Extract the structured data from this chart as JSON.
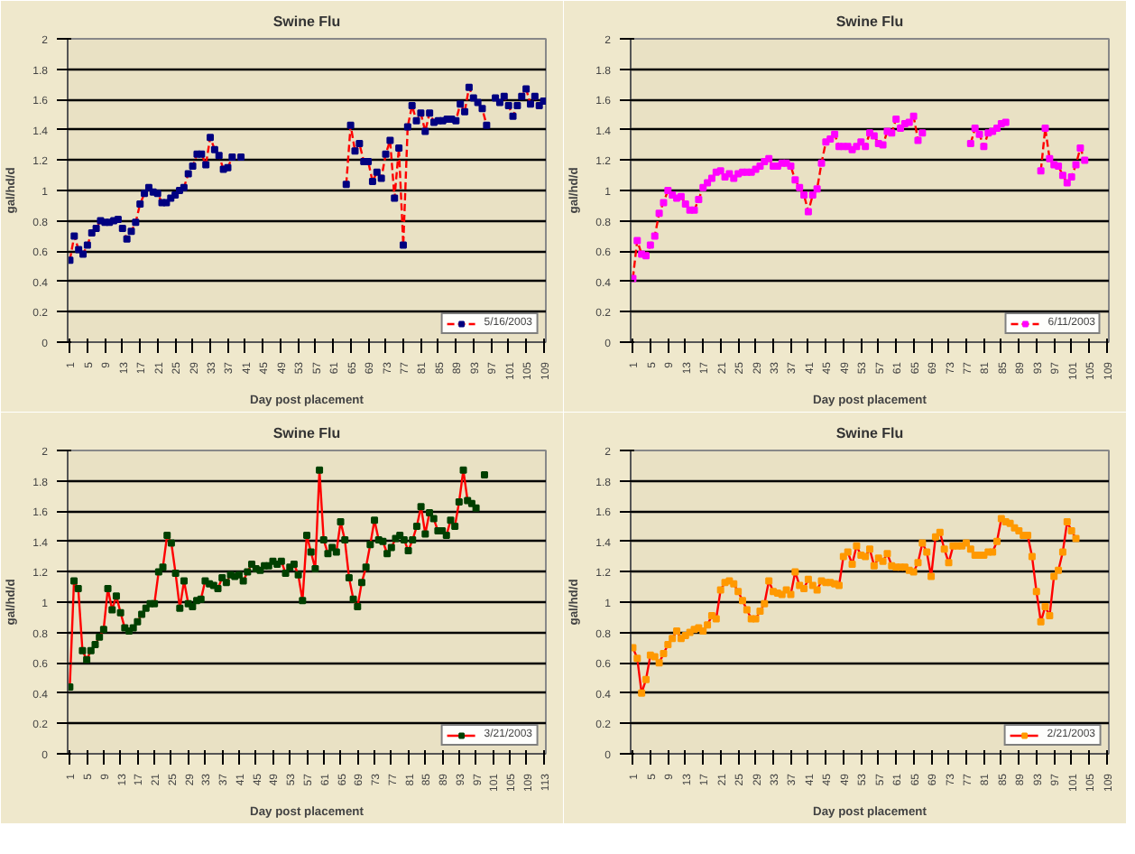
{
  "chart_data": [
    {
      "type": "line",
      "title": "Swine Flu",
      "xlabel": "Day post placement",
      "ylabel": "gal/hd/d",
      "legend": "bottom right",
      "grid": "y",
      "marker": "square",
      "line_style": "dashed",
      "xlim": [
        0.5,
        109.5
      ],
      "xticks": [
        1,
        5,
        9,
        13,
        17,
        21,
        25,
        29,
        33,
        37,
        41,
        45,
        49,
        53,
        57,
        61,
        65,
        69,
        73,
        77,
        81,
        85,
        89,
        93,
        97,
        101,
        105,
        109
      ],
      "ylim": [
        0,
        2
      ],
      "yticks": [
        0,
        0.2,
        0.4,
        0.6,
        0.8,
        1,
        1.2,
        1.4,
        1.6,
        1.8,
        2
      ],
      "x": [
        1,
        2,
        3,
        4,
        5,
        6,
        7,
        8,
        9,
        10,
        11,
        12,
        13,
        14,
        15,
        16,
        17,
        18,
        19,
        20,
        21,
        22,
        23,
        24,
        25,
        26,
        27,
        28,
        29,
        30,
        31,
        32,
        33,
        34,
        35,
        36,
        37,
        38,
        39,
        40,
        41,
        42,
        43,
        44,
        45,
        46,
        47,
        48,
        49,
        50,
        51,
        52,
        53,
        54,
        55,
        56,
        57,
        58,
        59,
        60,
        61,
        62,
        63,
        64,
        65,
        66,
        67,
        68,
        69,
        70,
        71,
        72,
        73,
        74,
        75,
        76,
        77,
        78,
        79,
        80,
        81,
        82,
        83,
        84,
        85,
        86,
        87,
        88,
        89,
        90,
        91,
        92,
        93,
        94,
        95,
        96,
        97,
        98,
        99,
        100,
        101,
        102,
        103,
        104,
        105,
        106,
        107,
        108,
        109
      ],
      "series": [
        {
          "name": "5/16/2003",
          "color": "#000080",
          "values": [
            0.54,
            0.7,
            0.61,
            0.58,
            0.64,
            0.72,
            0.75,
            0.8,
            0.79,
            0.79,
            0.8,
            0.81,
            0.75,
            0.68,
            0.73,
            0.79,
            0.91,
            0.98,
            1.02,
            0.99,
            0.98,
            0.92,
            0.92,
            0.95,
            0.97,
            1.0,
            1.02,
            1.11,
            1.16,
            1.24,
            1.24,
            1.17,
            1.35,
            1.27,
            1.23,
            1.14,
            1.15,
            1.22,
            null,
            1.22,
            null,
            null,
            null,
            null,
            null,
            null,
            null,
            null,
            null,
            null,
            null,
            null,
            null,
            null,
            null,
            null,
            null,
            null,
            null,
            null,
            null,
            null,
            null,
            1.04,
            1.43,
            1.26,
            1.31,
            1.19,
            1.19,
            1.06,
            1.12,
            1.08,
            1.24,
            1.33,
            0.95,
            1.28,
            0.64,
            1.42,
            1.56,
            1.46,
            1.51,
            1.39,
            1.51,
            1.45,
            1.46,
            1.46,
            1.47,
            1.47,
            1.46,
            1.57,
            1.52,
            1.68,
            1.61,
            1.58,
            1.54,
            1.43,
            null,
            1.61,
            1.58,
            1.62,
            1.56,
            1.49,
            1.56,
            1.62,
            1.67,
            1.57,
            1.62,
            1.56,
            1.59
          ]
        }
      ]
    },
    {
      "type": "line",
      "title": "Swine Flu",
      "xlabel": "Day post placement",
      "ylabel": "gal/hd/d",
      "legend": "bottom right",
      "grid": "y",
      "marker": "square",
      "line_style": "dashed",
      "xlim": [
        0.5,
        109.5
      ],
      "xticks": [
        1,
        5,
        9,
        13,
        17,
        21,
        25,
        29,
        33,
        37,
        41,
        45,
        49,
        53,
        57,
        61,
        65,
        69,
        73,
        77,
        81,
        85,
        89,
        93,
        97,
        101,
        105,
        109
      ],
      "ylim": [
        0,
        2
      ],
      "yticks": [
        0,
        0.2,
        0.4,
        0.6,
        0.8,
        1,
        1.2,
        1.4,
        1.6,
        1.8,
        2
      ],
      "x": [
        1,
        2,
        3,
        4,
        5,
        6,
        7,
        8,
        9,
        10,
        11,
        12,
        13,
        14,
        15,
        16,
        17,
        18,
        19,
        20,
        21,
        22,
        23,
        24,
        25,
        26,
        27,
        28,
        29,
        30,
        31,
        32,
        33,
        34,
        35,
        36,
        37,
        38,
        39,
        40,
        41,
        42,
        43,
        44,
        45,
        46,
        47,
        48,
        49,
        50,
        51,
        52,
        53,
        54,
        55,
        56,
        57,
        58,
        59,
        60,
        61,
        62,
        63,
        64,
        65,
        66,
        67,
        68,
        69,
        70,
        71,
        72,
        73,
        74,
        75,
        76,
        77,
        78,
        79,
        80,
        81,
        82,
        83,
        84,
        85,
        86,
        87,
        88,
        89,
        90,
        91,
        92,
        93,
        94,
        95,
        96,
        97,
        98,
        99,
        100,
        101,
        102,
        103,
        104
      ],
      "series": [
        {
          "name": "6/11/2003",
          "color": "#ff00ff",
          "values": [
            0.42,
            0.67,
            0.58,
            0.57,
            0.64,
            0.7,
            0.85,
            0.92,
            1.0,
            0.97,
            0.95,
            0.96,
            0.91,
            0.87,
            0.87,
            0.94,
            1.02,
            1.05,
            1.08,
            1.12,
            1.13,
            1.09,
            1.11,
            1.08,
            1.11,
            1.12,
            1.12,
            1.12,
            1.14,
            1.16,
            1.19,
            1.21,
            1.16,
            1.16,
            1.18,
            1.18,
            1.16,
            1.07,
            1.02,
            0.97,
            0.86,
            0.97,
            1.01,
            1.18,
            1.32,
            1.34,
            1.37,
            1.29,
            1.29,
            1.29,
            1.27,
            1.29,
            1.32,
            1.29,
            1.38,
            1.36,
            1.31,
            1.3,
            1.39,
            1.38,
            1.47,
            1.41,
            1.44,
            1.45,
            1.49,
            1.33,
            1.38,
            null,
            null,
            null,
            null,
            null,
            null,
            null,
            null,
            null,
            null,
            1.31,
            1.41,
            1.37,
            1.29,
            1.38,
            1.39,
            1.41,
            1.44,
            1.45,
            null,
            null,
            null,
            null,
            null,
            null,
            null,
            1.13,
            1.41,
            1.21,
            1.17,
            1.16,
            1.1,
            1.05,
            1.09,
            1.17,
            1.28,
            1.2
          ]
        }
      ]
    },
    {
      "type": "line",
      "title": "Swine Flu",
      "xlabel": "Day post placement",
      "ylabel": "gal/hd/d",
      "legend": "bottom right",
      "grid": "y",
      "marker": "square",
      "line_style": "solid",
      "xlim": [
        0.5,
        113.5
      ],
      "xticks": [
        1,
        5,
        9,
        13,
        17,
        21,
        25,
        29,
        33,
        37,
        41,
        45,
        49,
        53,
        57,
        61,
        65,
        69,
        73,
        77,
        81,
        85,
        89,
        93,
        97,
        101,
        105,
        109,
        113
      ],
      "ylim": [
        0,
        2
      ],
      "yticks": [
        0,
        0.2,
        0.4,
        0.6,
        0.8,
        1,
        1.2,
        1.4,
        1.6,
        1.8,
        2
      ],
      "x": [
        1,
        2,
        3,
        4,
        5,
        6,
        7,
        8,
        9,
        10,
        11,
        12,
        13,
        14,
        15,
        16,
        17,
        18,
        19,
        20,
        21,
        22,
        23,
        24,
        25,
        26,
        27,
        28,
        29,
        30,
        31,
        32,
        33,
        34,
        35,
        36,
        37,
        38,
        39,
        40,
        41,
        42,
        43,
        44,
        45,
        46,
        47,
        48,
        49,
        50,
        51,
        52,
        53,
        54,
        55,
        56,
        57,
        58,
        59,
        60,
        61,
        62,
        63,
        64,
        65,
        66,
        67,
        68,
        69,
        70,
        71,
        72,
        73,
        74,
        75,
        76,
        77,
        78,
        79,
        80,
        81,
        82,
        83,
        84,
        85,
        86,
        87,
        88,
        89,
        90,
        91,
        92,
        93,
        94,
        95,
        96,
        97,
        98,
        99
      ],
      "series": [
        {
          "name": "3/21/2003",
          "color": "#004000",
          "values": [
            0.44,
            1.14,
            1.09,
            0.68,
            0.62,
            0.68,
            0.72,
            0.77,
            0.82,
            1.09,
            0.95,
            1.04,
            0.93,
            0.83,
            0.81,
            0.83,
            0.87,
            0.92,
            0.96,
            0.99,
            0.99,
            1.2,
            1.23,
            1.44,
            1.39,
            1.19,
            0.96,
            1.14,
            0.99,
            0.97,
            1.01,
            1.02,
            1.14,
            1.12,
            1.11,
            1.09,
            1.16,
            1.13,
            1.18,
            1.17,
            1.18,
            1.14,
            1.2,
            1.25,
            1.22,
            1.21,
            1.24,
            1.24,
            1.27,
            1.25,
            1.27,
            1.19,
            1.23,
            1.25,
            1.18,
            1.01,
            1.44,
            1.33,
            1.22,
            1.87,
            1.41,
            1.32,
            1.36,
            1.33,
            1.53,
            1.41,
            1.16,
            1.02,
            0.97,
            1.13,
            1.23,
            1.38,
            1.54,
            1.41,
            1.4,
            1.32,
            1.36,
            1.42,
            1.44,
            1.41,
            1.34,
            1.41,
            1.5,
            1.63,
            1.45,
            1.59,
            1.55,
            1.47,
            1.47,
            1.44,
            1.54,
            1.5,
            1.66,
            1.87,
            1.67,
            1.65,
            1.62,
            null,
            1.84
          ]
        }
      ]
    },
    {
      "type": "line",
      "title": "Swine Flu",
      "xlabel": "Day post placement",
      "ylabel": "gal/hd/d",
      "legend": "bottom right",
      "grid": "y",
      "marker": "square",
      "line_style": "solid",
      "xlim": [
        0.5,
        109.5
      ],
      "xticks": [
        1,
        5,
        9,
        13,
        17,
        21,
        25,
        29,
        33,
        37,
        41,
        45,
        49,
        53,
        57,
        61,
        65,
        69,
        73,
        77,
        81,
        85,
        89,
        93,
        97,
        101,
        105,
        109
      ],
      "ylim": [
        0,
        2
      ],
      "yticks": [
        0,
        0.2,
        0.4,
        0.6,
        0.8,
        1,
        1.2,
        1.4,
        1.6,
        1.8,
        2
      ],
      "x": [
        1,
        2,
        3,
        4,
        5,
        6,
        7,
        8,
        9,
        10,
        11,
        12,
        13,
        14,
        15,
        16,
        17,
        18,
        19,
        20,
        21,
        22,
        23,
        24,
        25,
        26,
        27,
        28,
        29,
        30,
        31,
        32,
        33,
        34,
        35,
        36,
        37,
        38,
        39,
        40,
        41,
        42,
        43,
        44,
        45,
        46,
        47,
        48,
        49,
        50,
        51,
        52,
        53,
        54,
        55,
        56,
        57,
        58,
        59,
        60,
        61,
        62,
        63,
        64,
        65,
        66,
        67,
        68,
        69,
        70,
        71,
        72,
        73,
        74,
        75,
        76,
        77,
        78,
        79,
        80,
        81,
        82,
        83,
        84,
        85,
        86,
        87,
        88,
        89,
        90,
        91,
        92,
        93,
        94,
        95,
        96,
        97,
        98,
        99,
        100,
        101,
        102
      ],
      "series": [
        {
          "name": "2/21/2003",
          "color": "#ff9900",
          "values": [
            0.7,
            0.63,
            0.4,
            0.49,
            0.65,
            0.64,
            0.6,
            0.66,
            0.72,
            0.76,
            0.81,
            0.76,
            0.78,
            0.8,
            0.82,
            0.83,
            0.81,
            0.85,
            0.91,
            0.89,
            1.08,
            1.13,
            1.14,
            1.12,
            1.07,
            1.01,
            0.95,
            0.89,
            0.89,
            0.94,
            0.99,
            1.14,
            1.07,
            1.06,
            1.05,
            1.08,
            1.05,
            1.2,
            1.11,
            1.09,
            1.15,
            1.11,
            1.08,
            1.14,
            1.13,
            1.13,
            1.12,
            1.11,
            1.3,
            1.33,
            1.25,
            1.37,
            1.31,
            1.3,
            1.35,
            1.24,
            1.29,
            1.27,
            1.32,
            1.24,
            1.23,
            1.23,
            1.23,
            1.21,
            1.2,
            1.26,
            1.39,
            1.33,
            1.17,
            1.43,
            1.46,
            1.35,
            1.26,
            1.37,
            1.37,
            1.37,
            1.39,
            1.35,
            1.31,
            1.31,
            1.31,
            1.33,
            1.33,
            1.4,
            1.55,
            1.53,
            1.52,
            1.49,
            1.47,
            1.44,
            1.44,
            1.3,
            1.07,
            0.87,
            0.97,
            0.91,
            1.17,
            1.21,
            1.33,
            1.53,
            1.47,
            1.42
          ]
        }
      ]
    }
  ]
}
